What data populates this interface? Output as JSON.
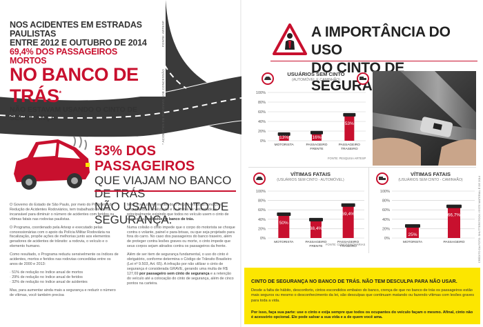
{
  "left_page": {
    "stat": {
      "line1": "NOS ACIDENTES EM ESTRADAS PAULISTAS",
      "line2": "ENTRE 2012 E OUTUBRO DE 2014",
      "line3": "69,4% DOS PASSAGEIROS MORTOS",
      "line4": "NO BANCO DE TRÁS",
      "line4_mark": "*",
      "line5": "NÃO ESTAVAM USANDO O CINTO DE SEGURANÇA."
    },
    "vertical_note_1": "FONTE: ARTESP",
    "vertical_note_2": "* ACIDENTES EM RODOVIAS SOB CONCESSÃO",
    "headline": {
      "h1": "53% DOS PASSAGEIROS",
      "h2": "QUE VIAJAM NO BANCO DE TRÁS",
      "h3": "NÃO USAM O CINTO DE SEGURANÇA."
    },
    "col1": [
      "O Governo do Estado de São Paulo, por meio do Programa de Redução de Acidentes Rodoviários, tem trabalhado de forma incansável para diminuir o número de acidentes com feridos ou vítimas fatais nas rodovias paulistas.",
      "O Programa, coordenado pela Artesp e executado pelas concessionárias com o apoio da Polícia Militar Rodoviária na fiscalização, propõe ações de melhorias junto aos elementos geradores de acidentes de trânsito: a rodovia, o veículo e o elemento humano.",
      "Como resultado, o Programa reduziu sensivelmente os índices de acidentes, mortos e feridos nas rodovias concedidas entre os anos de 2000 e 2013:",
      "· 51% de redução no índice anual de mortos",
      "· 29% de redução no índice anual de feridos",
      "· 32% de redução no índice anual de acidentes",
      "Mas, para aumentar ainda mais a segurança e reduzir o número de vítimas, você também precisa"
    ],
    "col2_p1": "fazer a sua parte: mantendo o veículo em boas condições, respeitando a sinalização e os limites de velocidade, e principalmente exigindo que todos no veículo usem o cinto de segurança, ",
    "col2_p1_bold": "inclusive no banco de trás.",
    "col2_p2": "Numa colisão o cinto impede que o corpo do motorista se choque contra o volante, painel e para-brisas, ou que seja projetado para fora do carro. No caso dos passageiros do banco traseiro, além de proteger contra lesões graves ou morte, o cinto impede que seus corpos sejam atirados contra os passageiros da frente.",
    "col2_p3_a": "Além de ser item de segurança fundamental, o uso do cinto é obrigatório, conforme determina o Código de Trânsito Brasileiro (Lei nº 9.503, Art. 65). A infração por não utilizar o cinto de segurança é considerada GRAVE, gerando uma multa de R$ 127,69 ",
    "col2_p3_bold": "por passageiro sem cinto de segurança",
    "col2_p3_b": " e a retenção do veículo até a colocação do cinto de segurança, além de cinco pontos na carteira."
  },
  "right_page": {
    "title_line1": "A IMPORTÂNCIA DO USO",
    "title_line2": "DO CINTO DE SEGURANÇA",
    "chart1_source": "FONTE: PESQUISA ARTESP",
    "chart23_source": "FONTE: CONCESSIONÁRIAS",
    "side_credit": "CRÉDITO DA FOTO: SHUTTERSTOCK / ESTE MATERIAL É DE 2014",
    "yellow": {
      "title": "CINTO DE SEGURANÇA NO BANCO DE TRÁS. NÃO TEM DESCULPA PARA NÃO USAR.",
      "body": "Desde a falta de hábito, desconforto, cintos escondidos embaixo do banco, crença de que no banco de trás os passageiros estão mais seguros ou mesmo o desconhecimento da lei, são desculpas que continuam matando ou fazendo vítimas com lesões graves para toda a vida.",
      "final": "Por isso, faça sua parte: use o cinto e exija sempre que todos os ocupantes do veículo façam o mesmo. Afinal, cinto não é acessório opcional. Ele pode salvar a sua vida e a de quem você ama."
    }
  },
  "chart_data": [
    {
      "type": "bar",
      "title": "USUÁRIOS SEM CINTO",
      "subtitle": "(AUTOMÓVEL E CAMINHÃO)",
      "categories": [
        "MOTORISTA",
        "PASSAGEIRO FRENTE",
        "PASSAGEIRO TRASEIRO"
      ],
      "values": [
        13,
        16,
        53
      ],
      "labels": [
        "13%",
        "16%",
        "53%"
      ],
      "ylim": [
        0,
        100
      ],
      "yticks": [
        "0%",
        "20%",
        "40%",
        "60%",
        "80%",
        "100%"
      ]
    },
    {
      "type": "bar",
      "title": "VÍTIMAS FATAIS",
      "subtitle": "(USUÁRIOS SEM CINTO - AUTOMÓVEL)",
      "categories": [
        "MOTORISTA",
        "PASSAGEIRO FRENTE",
        "PASSAGEIRO TRASEIRO"
      ],
      "values": [
        50.0,
        38.4,
        69.4
      ],
      "labels": [
        "50%",
        "38,4%",
        "69,4%"
      ],
      "ylim": [
        0,
        100
      ],
      "yticks": [
        "0%",
        "20%",
        "40%",
        "60%",
        "80%",
        "100%"
      ]
    },
    {
      "type": "bar",
      "title": "VÍTIMAS FATAIS",
      "subtitle": "(USUÁRIOS SEM CINTO - CAMINHÃO)",
      "categories": [
        "MOTORISTA",
        "PASSAGEIRO"
      ],
      "values": [
        25,
        66.7
      ],
      "labels": [
        "25%",
        "66,7%"
      ],
      "ylim": [
        0,
        100
      ],
      "yticks": [
        "0%",
        "20%",
        "40%",
        "60%",
        "80%",
        "100%"
      ]
    }
  ],
  "colors": {
    "red": "#c8102e",
    "yellow": "#fce600",
    "dark": "#222222",
    "gray_road": "#3a3a3a"
  }
}
